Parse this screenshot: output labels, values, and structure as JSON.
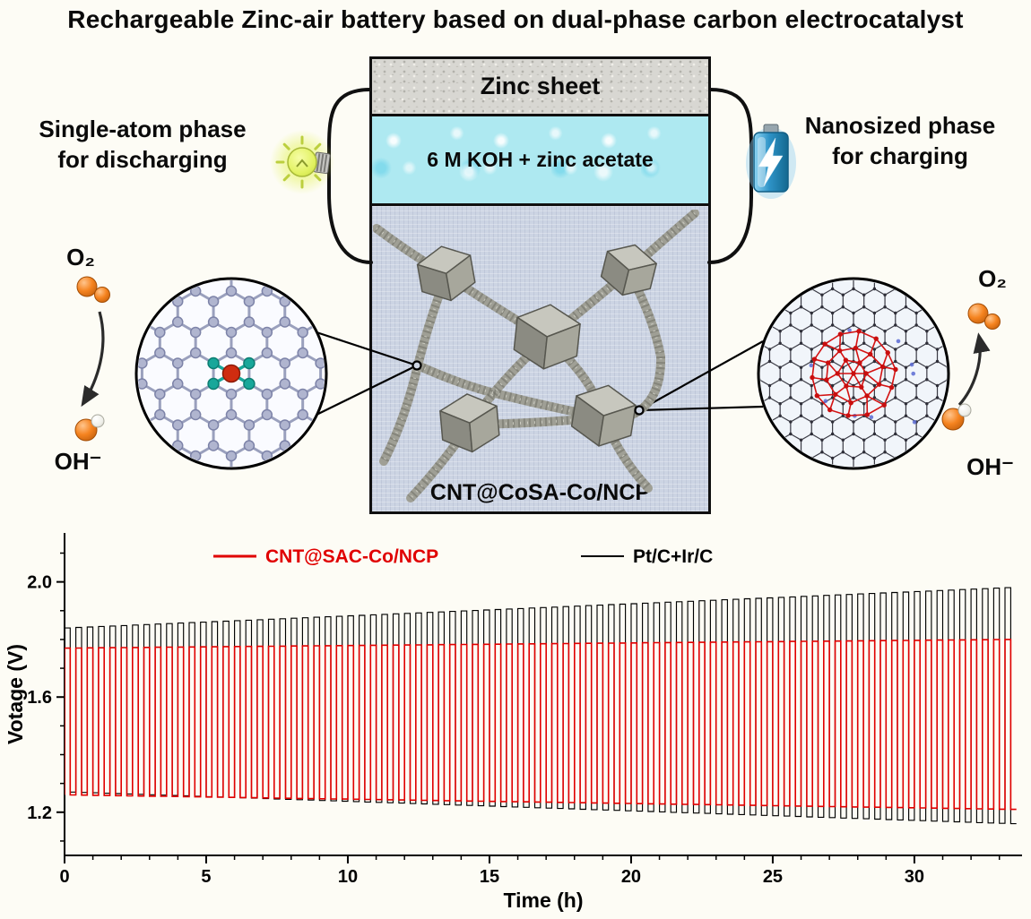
{
  "title": "Rechargeable Zinc-air battery based on dual-phase carbon electrocatalyst",
  "diagram": {
    "zinc_sheet": "Zinc sheet",
    "electrolyte": "6 M KOH + zinc acetate",
    "catalyst": "CNT@CoSA-Co/NCP",
    "left_phase_line1": "Single-atom phase",
    "left_phase_line2": "for discharging",
    "right_phase_line1": "Nanosized phase",
    "right_phase_line2": "for charging",
    "left_o2": "O₂",
    "left_oh": "OH⁻",
    "right_o2": "O₂",
    "right_oh": "OH⁻",
    "icons": {
      "left_energy_icon": "light-bulb-icon",
      "right_energy_icon": "charging-battery-icon",
      "left_inset": "single-atom-co-n4-site-inset",
      "right_inset": "co-nanoparticle-in-cnt-inset"
    }
  },
  "chart_data": {
    "type": "line",
    "title": "",
    "xlabel": "Time (h)",
    "ylabel": "Votage (V)",
    "xlim": [
      0,
      33.8
    ],
    "ylim": [
      1.05,
      2.17
    ],
    "xticks": [
      0,
      5,
      10,
      15,
      20,
      25,
      30
    ],
    "yticks": [
      1.2,
      1.6,
      2.0
    ],
    "x_minor_step": 1,
    "y_minor_step": 0.1,
    "grid": false,
    "legend_position": "top-inside",
    "waveform": "square-wave charge/discharge cycling",
    "cycle_period_h": 0.4,
    "series": [
      {
        "name": "CNT@SAC-Co/NCP",
        "color": "#e00000",
        "charge_voltage_start": 1.77,
        "charge_voltage_end": 1.8,
        "discharge_voltage_start": 1.26,
        "discharge_voltage_end": 1.21
      },
      {
        "name": "Pt/C+Ir/C",
        "color": "#000000",
        "charge_voltage_start": 1.84,
        "charge_voltage_end": 1.98,
        "discharge_voltage_start": 1.27,
        "discharge_voltage_end": 1.16
      }
    ]
  }
}
